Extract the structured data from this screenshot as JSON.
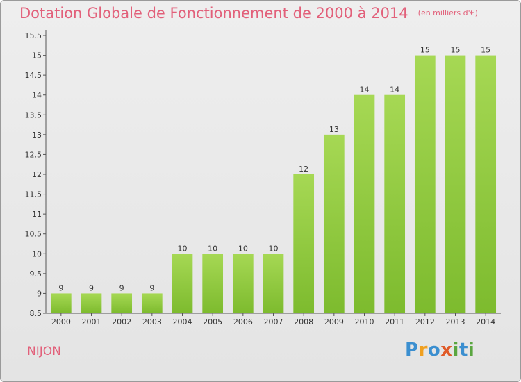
{
  "header": {
    "title": "Dotation Globale de Fonctionnement de 2000 à 2014",
    "subtitle": "(en milliers d'€)"
  },
  "footer": {
    "town": "NIJON",
    "logo_letters": [
      {
        "char": "P",
        "color": "#3b8fd0"
      },
      {
        "char": "r",
        "color": "#f0a020"
      },
      {
        "char": "o",
        "color": "#3b8fd0"
      },
      {
        "char": "x",
        "color": "#e05a28"
      },
      {
        "char": "i",
        "color": "#5aa640"
      },
      {
        "char": "t",
        "color": "#3b8fd0"
      },
      {
        "char": "i",
        "color": "#5aa640"
      }
    ]
  },
  "chart_data": {
    "type": "bar",
    "categories": [
      "2000",
      "2001",
      "2002",
      "2003",
      "2004",
      "2005",
      "2006",
      "2007",
      "2008",
      "2009",
      "2010",
      "2011",
      "2012",
      "2013",
      "2014"
    ],
    "values": [
      9,
      9,
      9,
      9,
      10,
      10,
      10,
      10,
      12,
      13,
      14,
      14,
      15,
      15,
      15
    ],
    "data_labels": [
      "9",
      "9",
      "9",
      "9",
      "10",
      "10",
      "10",
      "10",
      "12",
      "13",
      "14",
      "14",
      "15",
      "15",
      "15"
    ],
    "ylim": [
      8.5,
      15.5
    ],
    "yticks": [
      "8.5",
      "9",
      "9.5",
      "10",
      "10.5",
      "11",
      "11.5",
      "12",
      "12.5",
      "13",
      "13.5",
      "14",
      "14.5",
      "15",
      "15.5"
    ],
    "grid": false,
    "bar_color": "#7dbb2e",
    "axis_color": "#555555"
  }
}
